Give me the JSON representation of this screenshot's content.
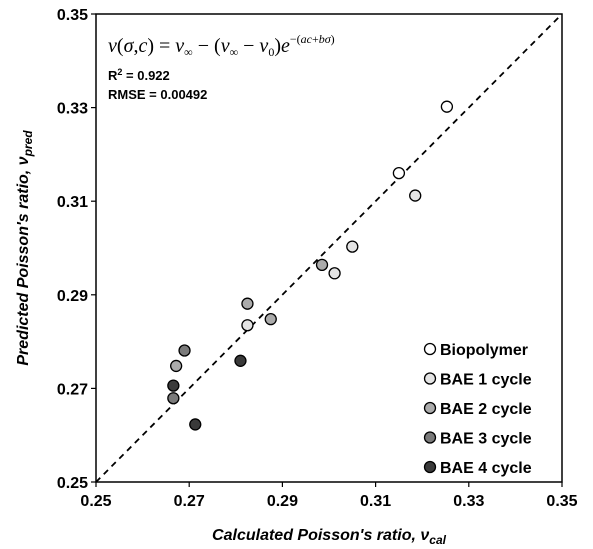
{
  "chart_data": {
    "type": "scatter",
    "xlabel": "Calculated Poisson's ratio, ",
    "xlabel_sub": "cal",
    "ylabel": "Predicted Poisson's ratio, ",
    "ylabel_sub": "pred",
    "xlim": [
      0.25,
      0.35
    ],
    "ylim": [
      0.25,
      0.35
    ],
    "xticks": [
      "0.25",
      "0.27",
      "0.29",
      "0.31",
      "0.33",
      "0.35"
    ],
    "yticks": [
      "0.25",
      "0.27",
      "0.29",
      "0.31",
      "0.33",
      "0.35"
    ],
    "equation": "ν(σ,c) = ν∞ − (ν∞ − ν0)e^−(ac+bσ)",
    "r2_label": "R",
    "r2_value": " = 0.922",
    "rmse_label": "RMSE = 0.00492",
    "reference_line": "1:1 dashed",
    "grid": false,
    "legend_position": "bottom-right",
    "series": [
      {
        "name": "Biopolymer",
        "color": "#ffffff",
        "points": [
          [
            0.3253,
            0.3302
          ],
          [
            0.315,
            0.316
          ]
        ]
      },
      {
        "name": "BAE 1 cycle",
        "color": "#e4e4e4",
        "points": [
          [
            0.3185,
            0.3112
          ],
          [
            0.305,
            0.3003
          ],
          [
            0.3012,
            0.2946
          ],
          [
            0.2825,
            0.2835
          ]
        ]
      },
      {
        "name": "BAE 2 cycle",
        "color": "#ababab",
        "points": [
          [
            0.2985,
            0.2964
          ],
          [
            0.2825,
            0.2881
          ],
          [
            0.2875,
            0.2848
          ],
          [
            0.2672,
            0.2748
          ]
        ]
      },
      {
        "name": "BAE 3 cycle",
        "color": "#7a7a7a",
        "points": [
          [
            0.269,
            0.2781
          ],
          [
            0.2666,
            0.2679
          ]
        ]
      },
      {
        "name": "BAE 4 cycle",
        "color": "#3a3a3a",
        "points": [
          [
            0.281,
            0.2759
          ],
          [
            0.2666,
            0.2706
          ],
          [
            0.2713,
            0.2623
          ]
        ]
      }
    ]
  }
}
